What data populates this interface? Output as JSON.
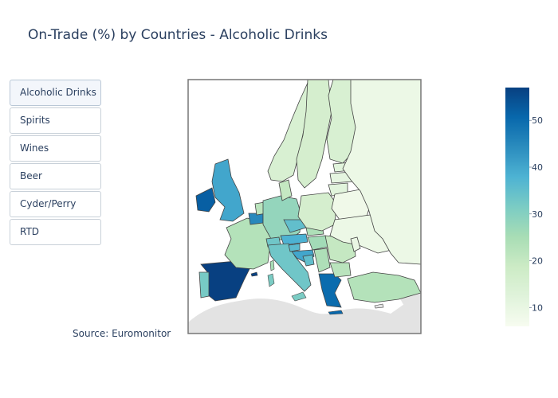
{
  "title": "On-Trade (%) by Countries - Alcoholic Drinks",
  "buttons": [
    {
      "label": "Alcoholic Drinks",
      "active": true
    },
    {
      "label": "Spirits",
      "active": false
    },
    {
      "label": "Wines",
      "active": false
    },
    {
      "label": "Beer",
      "active": false
    },
    {
      "label": "Cyder/Perry",
      "active": false
    },
    {
      "label": "RTD",
      "active": false
    }
  ],
  "source": "Source: Euromonitor",
  "colors": {
    "scale": [
      "#f7fcf0",
      "#e0f3db",
      "#ccebc5",
      "#a8ddb5",
      "#7bccc4",
      "#4eb3d3",
      "#2b8cbe",
      "#0868ac",
      "#084081"
    ],
    "land_no_data": "#e3e3e3",
    "border": "#444444"
  },
  "chart_data": {
    "type": "choropleth",
    "metric": "On-Trade (%)",
    "category": "Alcoholic Drinks",
    "colorbar": {
      "min": 6,
      "max": 57,
      "ticks": [
        10,
        20,
        30,
        40,
        50
      ]
    },
    "regions": [
      {
        "name": "Spain",
        "value": 57
      },
      {
        "name": "Portugal",
        "value": 32
      },
      {
        "name": "Ireland",
        "value": 52
      },
      {
        "name": "United Kingdom",
        "value": 40
      },
      {
        "name": "France",
        "value": 23
      },
      {
        "name": "Belgium",
        "value": 45
      },
      {
        "name": "Netherlands",
        "value": 22
      },
      {
        "name": "Germany",
        "value": 28
      },
      {
        "name": "Switzerland",
        "value": 33
      },
      {
        "name": "Austria",
        "value": 38
      },
      {
        "name": "Czech Republic",
        "value": 35
      },
      {
        "name": "Italy",
        "value": 33
      },
      {
        "name": "Slovenia",
        "value": 36
      },
      {
        "name": "Croatia",
        "value": 40
      },
      {
        "name": "Bosnia",
        "value": 35
      },
      {
        "name": "Hungary",
        "value": 26
      },
      {
        "name": "Slovakia",
        "value": 24
      },
      {
        "name": "Poland",
        "value": 16
      },
      {
        "name": "Greece",
        "value": 50
      },
      {
        "name": "Bulgaria",
        "value": 22
      },
      {
        "name": "Romania",
        "value": 20
      },
      {
        "name": "Serbia",
        "value": 24
      },
      {
        "name": "Turkey",
        "value": 23
      },
      {
        "name": "Denmark",
        "value": 20
      },
      {
        "name": "Norway",
        "value": 15
      },
      {
        "name": "Sweden",
        "value": 16
      },
      {
        "name": "Finland",
        "value": 15
      },
      {
        "name": "Estonia",
        "value": 12
      },
      {
        "name": "Latvia",
        "value": 11
      },
      {
        "name": "Lithuania",
        "value": 12
      },
      {
        "name": "Belarus",
        "value": 8
      },
      {
        "name": "Ukraine",
        "value": 9
      },
      {
        "name": "Russia",
        "value": 9
      },
      {
        "name": "Moldova",
        "value": 10
      }
    ]
  }
}
